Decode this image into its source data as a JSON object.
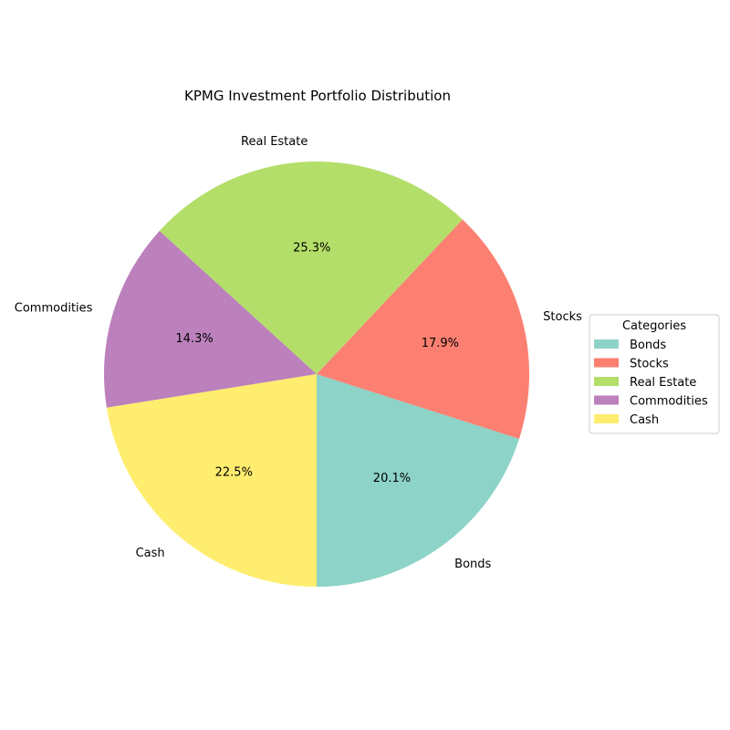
{
  "chart_data": {
    "type": "pie",
    "title": "KPMG Investment Portfolio Distribution",
    "slices": [
      {
        "label": "Bonds",
        "value": 20.1,
        "pct_label": "20.1%",
        "color": "#8dd3c7"
      },
      {
        "label": "Stocks",
        "value": 17.9,
        "pct_label": "17.9%",
        "color": "#fb8072"
      },
      {
        "label": "Real Estate",
        "value": 25.3,
        "pct_label": "25.3%",
        "color": "#b3de69"
      },
      {
        "label": "Commodities",
        "value": 14.3,
        "pct_label": "14.3%",
        "color": "#bc80bd"
      },
      {
        "label": "Cash",
        "value": 22.5,
        "pct_label": "22.5%",
        "color": "#ffed6f"
      }
    ],
    "start_angle_deg": -90,
    "direction": "counterclockwise",
    "legend": {
      "title": "Categories",
      "placement": "right"
    }
  }
}
